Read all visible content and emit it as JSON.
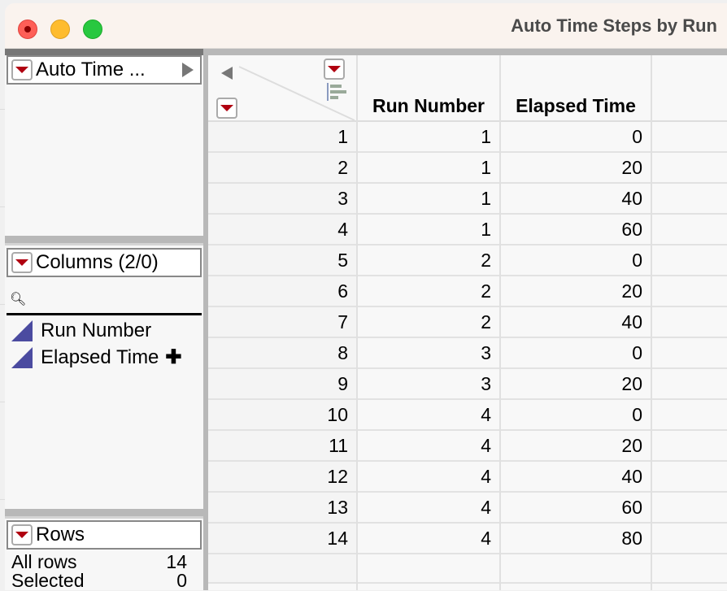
{
  "window": {
    "title": "Auto Time Steps by Run",
    "traffic_lights": {
      "close": "#fe5f57",
      "minimize": "#febc2e",
      "zoom": "#28c840"
    }
  },
  "table_panel": {
    "label": "Auto Time ..."
  },
  "columns_panel": {
    "label": "Columns (2/0)",
    "search_placeholder": "",
    "items": [
      {
        "name": "Run Number",
        "icon": "continuous-triangle-icon"
      },
      {
        "name": "Elapsed Time",
        "icon": "continuous-triangle-icon",
        "suffix": "✚"
      }
    ]
  },
  "rows_panel": {
    "label": "Rows",
    "items": [
      {
        "label": "All rows",
        "value": "14"
      },
      {
        "label": "Selected",
        "value": "0"
      }
    ]
  },
  "grid": {
    "columns": [
      "Run Number",
      "Elapsed Time"
    ],
    "rows": [
      [
        "1",
        "1",
        "0"
      ],
      [
        "2",
        "1",
        "20"
      ],
      [
        "3",
        "1",
        "40"
      ],
      [
        "4",
        "1",
        "60"
      ],
      [
        "5",
        "2",
        "0"
      ],
      [
        "6",
        "2",
        "20"
      ],
      [
        "7",
        "2",
        "40"
      ],
      [
        "8",
        "3",
        "0"
      ],
      [
        "9",
        "3",
        "20"
      ],
      [
        "10",
        "4",
        "0"
      ],
      [
        "11",
        "4",
        "20"
      ],
      [
        "12",
        "4",
        "40"
      ],
      [
        "13",
        "4",
        "60"
      ],
      [
        "14",
        "4",
        "80"
      ]
    ]
  },
  "accent": "#b00010"
}
